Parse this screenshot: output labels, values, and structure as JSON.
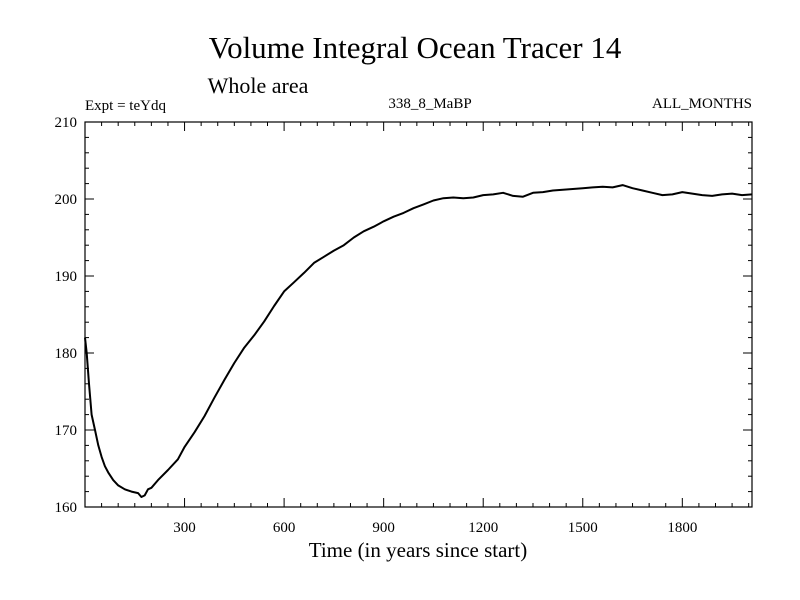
{
  "chart_data": {
    "type": "line",
    "title": "Volume Integral Ocean Tracer 14",
    "subtitle": "Whole area",
    "header_left": "Expt = teYdq",
    "header_center": "338_8_MaBP",
    "header_right": "ALL_MONTHS",
    "xlabel": "Time (in years since start)",
    "ylabel": "",
    "xlim": [
      0,
      2010
    ],
    "ylim": [
      160,
      210
    ],
    "xticks": [
      300,
      600,
      900,
      1200,
      1500,
      1800
    ],
    "xtick_labels": [
      "300",
      "600",
      "900",
      "1200",
      "1500",
      "1800"
    ],
    "yticks": [
      160,
      170,
      180,
      190,
      200,
      210
    ],
    "ytick_labels": [
      "160",
      "170",
      "180",
      "190",
      "200",
      "210"
    ],
    "line_color": "#000000",
    "series": [
      {
        "name": "Volume Integral Ocean Tracer 14",
        "x": [
          0,
          5,
          12,
          20,
          30,
          40,
          50,
          60,
          70,
          85,
          100,
          120,
          140,
          160,
          170,
          180,
          190,
          200,
          220,
          250,
          280,
          300,
          330,
          360,
          390,
          420,
          450,
          480,
          510,
          540,
          570,
          600,
          630,
          660,
          690,
          720,
          750,
          780,
          810,
          840,
          870,
          900,
          930,
          960,
          990,
          1020,
          1050,
          1080,
          1110,
          1140,
          1170,
          1200,
          1230,
          1260,
          1290,
          1320,
          1350,
          1380,
          1410,
          1440,
          1470,
          1500,
          1530,
          1560,
          1590,
          1620,
          1650,
          1680,
          1710,
          1740,
          1770,
          1800,
          1830,
          1860,
          1890,
          1920,
          1950,
          1980,
          2010
        ],
        "values": [
          182,
          180,
          176,
          172,
          170,
          168,
          166.5,
          165.3,
          164.5,
          163.5,
          162.8,
          162.3,
          162,
          161.8,
          161.3,
          161.5,
          162.3,
          162.5,
          163.5,
          164.8,
          166.2,
          167.8,
          169.7,
          171.8,
          174.2,
          176.5,
          178.7,
          180.7,
          182.3,
          184.1,
          186.1,
          188,
          189.2,
          190.4,
          191.7,
          192.5,
          193.3,
          194,
          195,
          195.8,
          196.4,
          197.1,
          197.7,
          198.2,
          198.8,
          199.3,
          199.8,
          200.1,
          200.2,
          200.1,
          200.2,
          200.5,
          200.6,
          200.8,
          200.4,
          200.3,
          200.8,
          200.9,
          201.1,
          201.2,
          201.3,
          201.4,
          201.5,
          201.6,
          201.5,
          201.8,
          201.4,
          201.1,
          200.8,
          200.5,
          200.6,
          200.9,
          200.7,
          200.5,
          200.4,
          200.6,
          200.7,
          200.5,
          200.6
        ]
      }
    ]
  }
}
